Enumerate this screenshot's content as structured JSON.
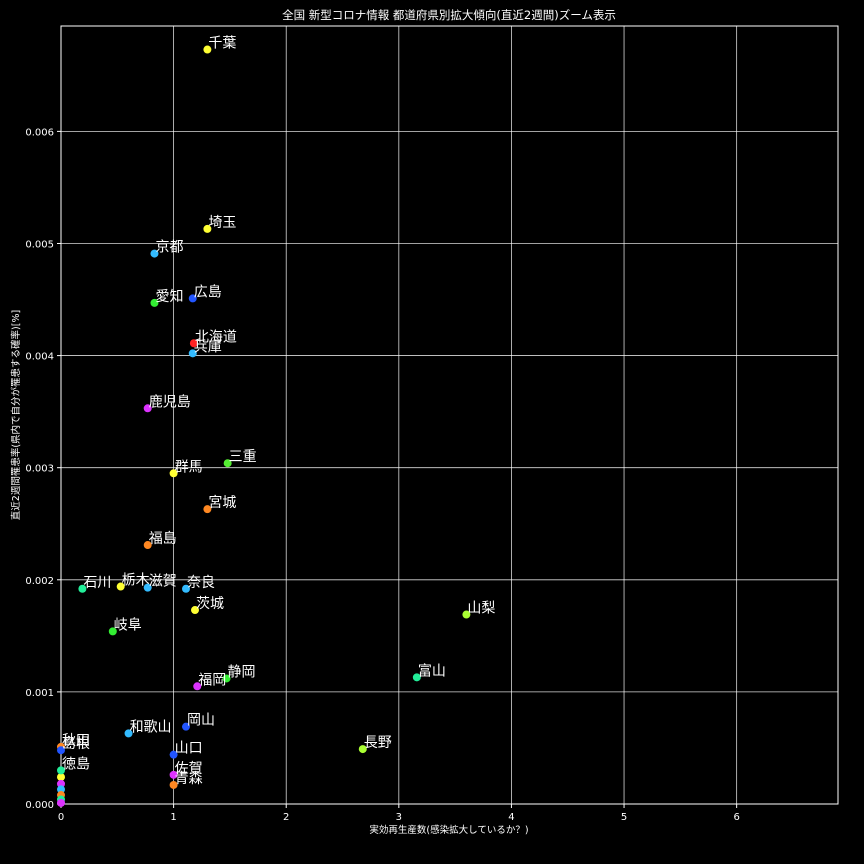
{
  "chart_data": {
    "type": "scatter",
    "title": "全国 新型コロナ情報 都道府県別拡大傾向(直近2週間)ズーム表示",
    "xlabel": "実効再生産数(感染拡大しているか？)",
    "ylabel": "直近2週間罹患率(県内で自分が罹患する確率)[%]",
    "xlim": [
      0,
      6.9
    ],
    "ylim": [
      0,
      0.00694
    ],
    "xticks": [
      0,
      1,
      2,
      3,
      4,
      5,
      6
    ],
    "xtick_labels": [
      "0",
      "1",
      "2",
      "3",
      "4",
      "5",
      "6"
    ],
    "yticks": [
      0,
      0.001,
      0.002,
      0.003,
      0.004,
      0.005,
      0.006
    ],
    "ytick_labels": [
      "0.000",
      "0.001",
      "0.002",
      "0.003",
      "0.004",
      "0.005",
      "0.006"
    ],
    "grid": true,
    "background": "#000000",
    "points": [
      {
        "label": "千葉",
        "x": 1.3,
        "y": 0.00673,
        "color": "#ffff33"
      },
      {
        "label": "埼玉",
        "x": 1.3,
        "y": 0.00513,
        "color": "#ffff33"
      },
      {
        "label": "京都",
        "x": 0.83,
        "y": 0.00491,
        "color": "#33bbff"
      },
      {
        "label": "広島",
        "x": 1.17,
        "y": 0.00451,
        "color": "#2255ff"
      },
      {
        "label": "愛知",
        "x": 0.83,
        "y": 0.00447,
        "color": "#33ee33"
      },
      {
        "label": "北海道",
        "x": 1.18,
        "y": 0.00411,
        "color": "#ff2222"
      },
      {
        "label": "兵庫",
        "x": 1.17,
        "y": 0.00402,
        "color": "#33bbff"
      },
      {
        "label": "鹿児島",
        "x": 0.77,
        "y": 0.00353,
        "color": "#dd33ff"
      },
      {
        "label": "三重",
        "x": 1.48,
        "y": 0.00304,
        "color": "#55ee33"
      },
      {
        "label": "群馬",
        "x": 1.0,
        "y": 0.00295,
        "color": "#ffff33"
      },
      {
        "label": "宮城",
        "x": 1.3,
        "y": 0.00263,
        "color": "#ff8822"
      },
      {
        "label": "福島",
        "x": 0.77,
        "y": 0.00231,
        "color": "#ff8822"
      },
      {
        "label": "石川",
        "x": 0.19,
        "y": 0.00192,
        "color": "#22ee99"
      },
      {
        "label": "栃木",
        "x": 0.53,
        "y": 0.00194,
        "color": "#ffff33"
      },
      {
        "label": "滋賀",
        "x": 0.77,
        "y": 0.00193,
        "color": "#33bbff"
      },
      {
        "label": "奈良",
        "x": 1.11,
        "y": 0.00192,
        "color": "#33bbff"
      },
      {
        "label": "茨城",
        "x": 1.19,
        "y": 0.00173,
        "color": "#ffff33"
      },
      {
        "label": "山梨",
        "x": 3.6,
        "y": 0.00169,
        "color": "#aaff33"
      },
      {
        "label": "岐阜",
        "x": 0.46,
        "y": 0.00154,
        "color": "#33ee33"
      },
      {
        "label": "富山",
        "x": 3.16,
        "y": 0.00113,
        "color": "#22ee99"
      },
      {
        "label": "静岡",
        "x": 1.47,
        "y": 0.00112,
        "color": "#33ee33"
      },
      {
        "label": "福岡",
        "x": 1.21,
        "y": 0.00105,
        "color": "#dd33ff"
      },
      {
        "label": "岡山",
        "x": 1.11,
        "y": 0.00069,
        "color": "#2255ff"
      },
      {
        "label": "和歌山",
        "x": 0.6,
        "y": 0.00063,
        "color": "#33bbff"
      },
      {
        "label": "長野",
        "x": 2.68,
        "y": 0.00049,
        "color": "#aaff33"
      },
      {
        "label": "秋田",
        "x": 0.0,
        "y": 0.00051,
        "color": "#ff8822"
      },
      {
        "label": "島根",
        "x": 0.0,
        "y": 0.00048,
        "color": "#2255ff"
      },
      {
        "label": "山口",
        "x": 1.0,
        "y": 0.00044,
        "color": "#2255ff"
      },
      {
        "label": "徳島",
        "x": 0.0,
        "y": 0.0003,
        "color": "#22ee99"
      },
      {
        "label": "佐賀",
        "x": 1.0,
        "y": 0.00026,
        "color": "#dd33ff"
      },
      {
        "label": "青森",
        "x": 1.0,
        "y": 0.00017,
        "color": "#ff8822"
      }
    ],
    "cluster_points": [
      {
        "x": 0.0,
        "y": 0.00024,
        "color": "#ffff33"
      },
      {
        "x": 0.0,
        "y": 0.00018,
        "color": "#dd33ff"
      },
      {
        "x": 0.0,
        "y": 0.00013,
        "color": "#33bbff"
      },
      {
        "x": 0.0,
        "y": 8e-05,
        "color": "#ff8822"
      },
      {
        "x": 0.0,
        "y": 4e-05,
        "color": "#22ee99"
      },
      {
        "x": 0.0,
        "y": 1e-05,
        "color": "#dd33ff"
      }
    ]
  }
}
